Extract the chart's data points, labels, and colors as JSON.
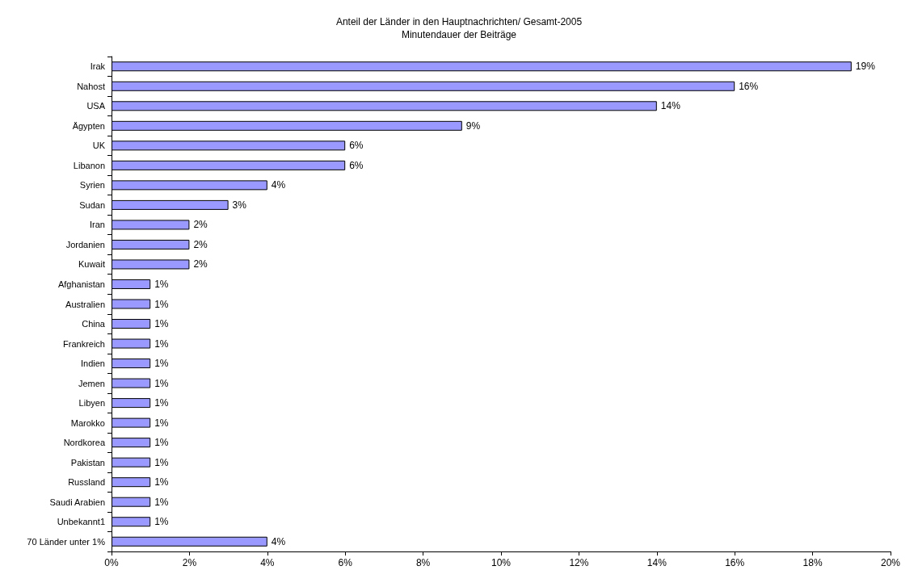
{
  "chart_data": {
    "type": "bar",
    "orientation": "horizontal",
    "title": "Anteil der Länder in den Hauptnachrichten/ Gesamt-2005",
    "subtitle": "Minutendauer der Beiträge",
    "categories": [
      "Irak",
      "Nahost",
      "USA",
      "Ägypten",
      "UK",
      "Libanon",
      "Syrien",
      "Sudan",
      "Iran",
      "Jordanien",
      "Kuwait",
      "Afghanistan",
      "Australien",
      "China",
      "Frankreich",
      "Indien",
      "Jemen",
      "Libyen",
      "Marokko",
      "Nordkorea",
      "Pakistan",
      "Russland",
      "Saudi Arabien",
      "Unbekannt1",
      "70 Länder unter 1%"
    ],
    "values": [
      19,
      16,
      14,
      9,
      6,
      6,
      4,
      3,
      2,
      2,
      2,
      1,
      1,
      1,
      1,
      1,
      1,
      1,
      1,
      1,
      1,
      1,
      1,
      1,
      4
    ],
    "value_labels": [
      "19%",
      "16%",
      "14%",
      "9%",
      "6%",
      "6%",
      "4%",
      "3%",
      "2%",
      "2%",
      "2%",
      "1%",
      "1%",
      "1%",
      "1%",
      "1%",
      "1%",
      "1%",
      "1%",
      "1%",
      "1%",
      "1%",
      "1%",
      "1%",
      "4%"
    ],
    "color": "#9999ff",
    "xlim": [
      0,
      20
    ],
    "xticks": [
      {
        "value": 0,
        "label": "0%"
      },
      {
        "value": 2,
        "label": "2%"
      },
      {
        "value": 4,
        "label": "4%"
      },
      {
        "value": 6,
        "label": "6%"
      },
      {
        "value": 8,
        "label": "8%"
      },
      {
        "value": 10,
        "label": "10%"
      },
      {
        "value": 12,
        "label": "12%"
      },
      {
        "value": 14,
        "label": "14%"
      },
      {
        "value": 16,
        "label": "16%"
      },
      {
        "value": 18,
        "label": "18%"
      },
      {
        "value": 20,
        "label": "20%"
      }
    ],
    "grid": false
  }
}
